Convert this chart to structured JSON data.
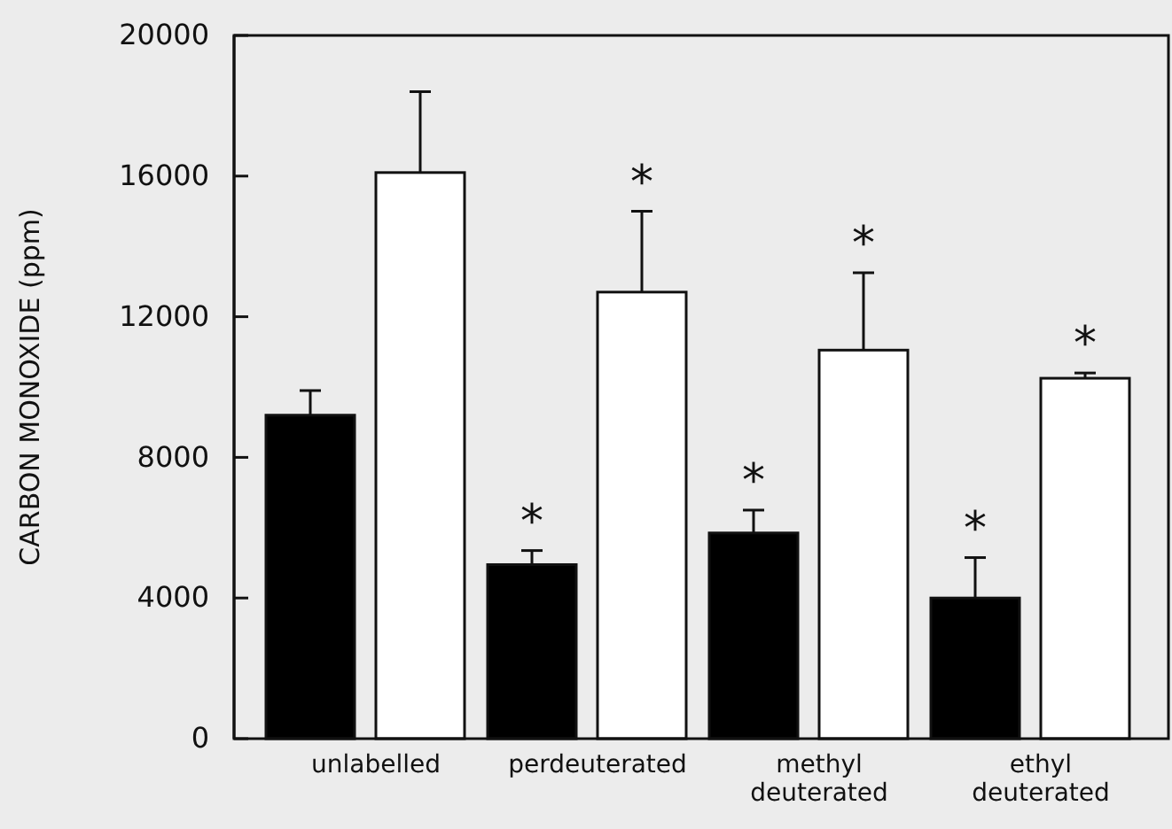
{
  "chart_data": {
    "type": "bar",
    "categories": [
      "unlabelled",
      "perdeuterated",
      "methyl deuterated",
      "ethyl deuterated"
    ],
    "series": [
      {
        "color": "#000000",
        "values": [
          9200,
          4950,
          5850,
          4000
        ],
        "errors": [
          [
            9200,
            9900
          ],
          [
            4950,
            5350
          ],
          [
            5850,
            6500
          ],
          [
            4000,
            5150
          ]
        ],
        "value_labels": [
          null,
          "*",
          "*",
          "*"
        ]
      },
      {
        "color": "#ffffff",
        "values": [
          16100,
          12700,
          11050,
          10250
        ],
        "errors": [
          [
            16100,
            18400
          ],
          [
            12700,
            15000
          ],
          [
            11050,
            13250
          ],
          [
            10250,
            10400
          ]
        ],
        "value_labels": [
          null,
          "*",
          "*",
          "*"
        ]
      }
    ],
    "ylabel": "CARBON MONOXIDE (ppm)",
    "ylim": [
      0,
      20000
    ],
    "yticks": [
      0,
      4000,
      8000,
      12000,
      16000,
      20000
    ],
    "grid": false
  }
}
